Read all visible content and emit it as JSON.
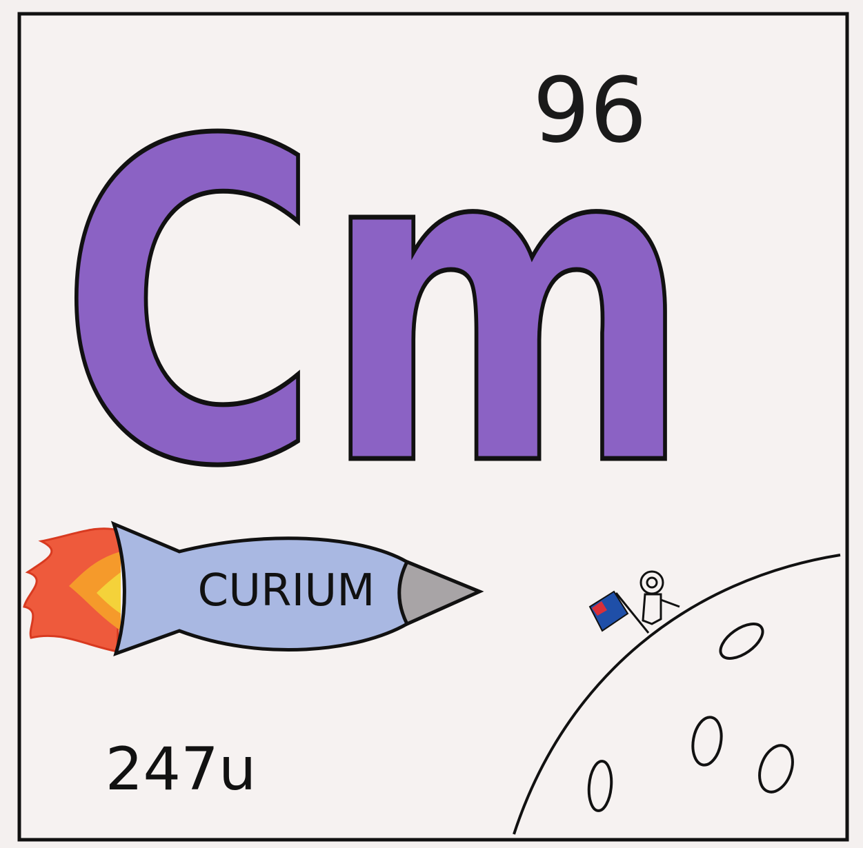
{
  "element": {
    "atomic_number": "96",
    "symbol": "Cm",
    "name": "CURIUM",
    "atomic_mass": "247u"
  }
}
